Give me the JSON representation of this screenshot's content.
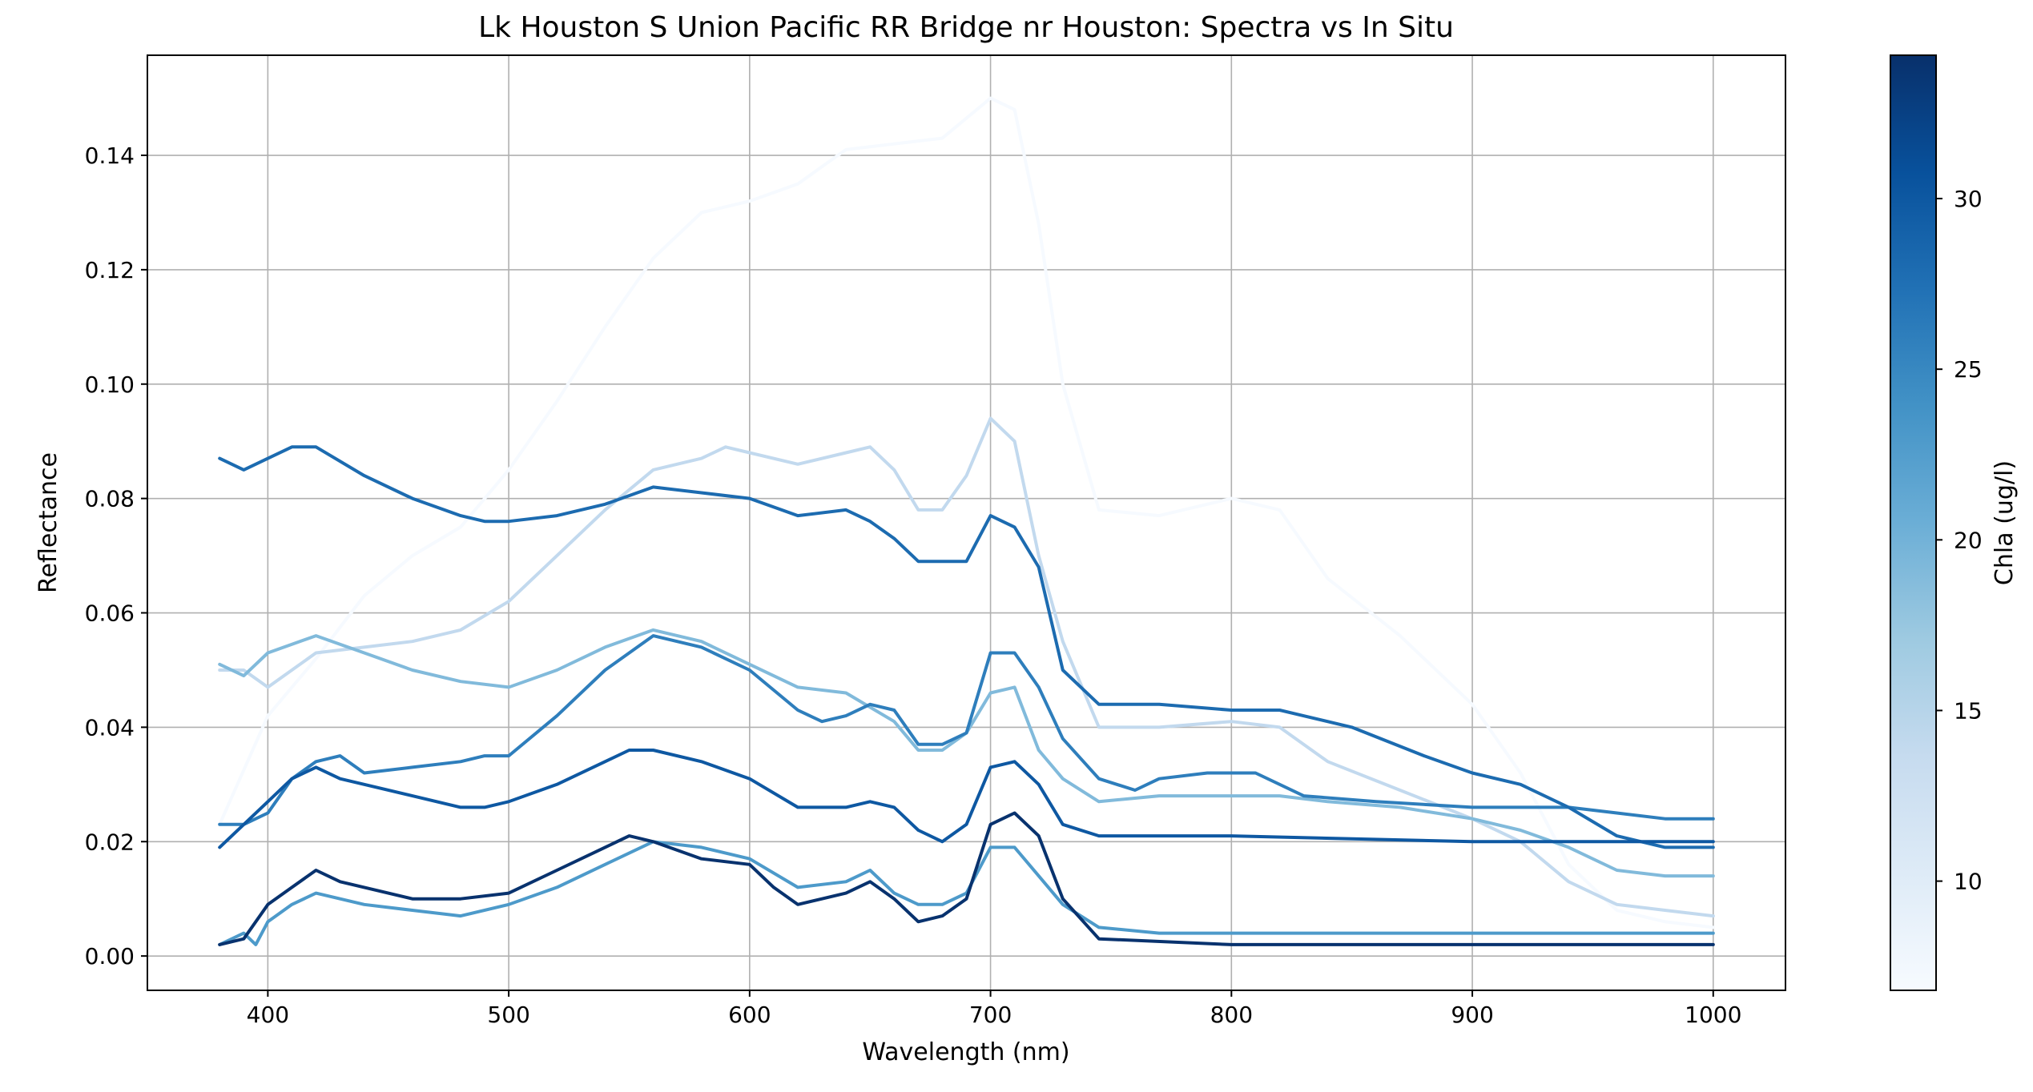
{
  "chart_data": {
    "type": "line",
    "title": "Lk Houston S Union Pacific RR Bridge nr Houston: Spectra vs In Situ",
    "xlabel": "Wavelength (nm)",
    "ylabel": "Reflectance",
    "xlim": [
      350,
      1030
    ],
    "ylim": [
      -0.006,
      0.1575
    ],
    "xticks": [
      400,
      500,
      600,
      700,
      800,
      900,
      1000
    ],
    "yticks": [
      0.0,
      0.02,
      0.04,
      0.06,
      0.08,
      0.1,
      0.12,
      0.14
    ],
    "ytick_labels": [
      "0.00",
      "0.02",
      "0.04",
      "0.06",
      "0.08",
      "0.10",
      "0.12",
      "0.14"
    ],
    "grid": true,
    "colorbar": {
      "label": "Chla (ug/l)",
      "range": [
        6.8,
        34.2
      ],
      "ticks": [
        10,
        15,
        20,
        25,
        30
      ],
      "colormap": "Blues",
      "colors": [
        "#f7fbff",
        "#deebf7",
        "#c6dbef",
        "#9ecae1",
        "#6baed6",
        "#4292c6",
        "#2171b5",
        "#08519c",
        "#08306b"
      ]
    },
    "series": [
      {
        "chla": 7.0,
        "x": [
          380,
          400,
          420,
          440,
          460,
          480,
          500,
          520,
          540,
          560,
          580,
          600,
          620,
          640,
          660,
          680,
          700,
          710,
          720,
          730,
          745,
          770,
          800,
          820,
          840,
          870,
          900,
          920,
          940,
          960,
          980,
          1000
        ],
        "y": [
          0.023,
          0.042,
          0.052,
          0.063,
          0.07,
          0.075,
          0.085,
          0.097,
          0.11,
          0.122,
          0.13,
          0.132,
          0.135,
          0.141,
          0.142,
          0.143,
          0.15,
          0.148,
          0.128,
          0.1,
          0.078,
          0.077,
          0.08,
          0.078,
          0.066,
          0.056,
          0.044,
          0.032,
          0.016,
          0.008,
          0.006,
          0.005
        ]
      },
      {
        "chla": 14.0,
        "x": [
          380,
          390,
          400,
          420,
          440,
          460,
          480,
          500,
          520,
          540,
          560,
          580,
          590,
          600,
          620,
          640,
          650,
          660,
          670,
          680,
          690,
          700,
          710,
          720,
          730,
          745,
          770,
          800,
          820,
          840,
          870,
          900,
          920,
          940,
          960,
          980,
          1000
        ],
        "y": [
          0.05,
          0.05,
          0.047,
          0.053,
          0.054,
          0.055,
          0.057,
          0.062,
          0.07,
          0.078,
          0.085,
          0.087,
          0.089,
          0.088,
          0.086,
          0.088,
          0.089,
          0.085,
          0.078,
          0.078,
          0.084,
          0.094,
          0.09,
          0.07,
          0.055,
          0.04,
          0.04,
          0.041,
          0.04,
          0.034,
          0.029,
          0.024,
          0.02,
          0.013,
          0.009,
          0.008,
          0.007
        ]
      },
      {
        "chla": 19.0,
        "x": [
          380,
          390,
          400,
          420,
          440,
          460,
          480,
          500,
          520,
          540,
          560,
          580,
          600,
          620,
          640,
          660,
          670,
          680,
          690,
          700,
          710,
          720,
          730,
          745,
          770,
          800,
          820,
          840,
          870,
          900,
          920,
          940,
          960,
          980,
          1000
        ],
        "y": [
          0.051,
          0.049,
          0.053,
          0.056,
          0.053,
          0.05,
          0.048,
          0.047,
          0.05,
          0.054,
          0.057,
          0.055,
          0.051,
          0.047,
          0.046,
          0.041,
          0.036,
          0.036,
          0.039,
          0.046,
          0.047,
          0.036,
          0.031,
          0.027,
          0.028,
          0.028,
          0.028,
          0.027,
          0.026,
          0.024,
          0.022,
          0.019,
          0.015,
          0.014,
          0.014
        ]
      },
      {
        "chla": 23.0,
        "x": [
          380,
          390,
          395,
          400,
          410,
          420,
          440,
          460,
          480,
          500,
          520,
          540,
          560,
          580,
          600,
          620,
          640,
          650,
          660,
          670,
          680,
          690,
          700,
          710,
          720,
          730,
          745,
          770,
          800,
          850,
          900,
          950,
          1000
        ],
        "y": [
          0.002,
          0.004,
          0.002,
          0.006,
          0.009,
          0.011,
          0.009,
          0.008,
          0.007,
          0.009,
          0.012,
          0.016,
          0.02,
          0.019,
          0.017,
          0.012,
          0.013,
          0.015,
          0.011,
          0.009,
          0.009,
          0.011,
          0.019,
          0.019,
          0.014,
          0.009,
          0.005,
          0.004,
          0.004,
          0.004,
          0.004,
          0.004,
          0.004
        ]
      },
      {
        "chla": 26.0,
        "x": [
          380,
          390,
          400,
          410,
          420,
          430,
          440,
          460,
          480,
          490,
          500,
          520,
          540,
          560,
          580,
          600,
          620,
          630,
          640,
          650,
          660,
          670,
          680,
          690,
          700,
          710,
          720,
          730,
          745,
          760,
          770,
          790,
          810,
          830,
          860,
          900,
          940,
          960,
          980,
          1000
        ],
        "y": [
          0.023,
          0.023,
          0.025,
          0.031,
          0.034,
          0.035,
          0.032,
          0.033,
          0.034,
          0.035,
          0.035,
          0.042,
          0.05,
          0.056,
          0.054,
          0.05,
          0.043,
          0.041,
          0.042,
          0.044,
          0.043,
          0.037,
          0.037,
          0.039,
          0.053,
          0.053,
          0.047,
          0.038,
          0.031,
          0.029,
          0.031,
          0.032,
          0.032,
          0.028,
          0.027,
          0.026,
          0.026,
          0.025,
          0.024,
          0.024
        ]
      },
      {
        "chla": 28.0,
        "x": [
          380,
          390,
          400,
          410,
          420,
          440,
          460,
          480,
          490,
          500,
          520,
          540,
          560,
          580,
          600,
          620,
          640,
          650,
          660,
          670,
          680,
          690,
          700,
          710,
          720,
          730,
          745,
          770,
          800,
          820,
          850,
          880,
          900,
          920,
          940,
          960,
          980,
          1000
        ],
        "y": [
          0.087,
          0.085,
          0.087,
          0.089,
          0.089,
          0.084,
          0.08,
          0.077,
          0.076,
          0.076,
          0.077,
          0.079,
          0.082,
          0.081,
          0.08,
          0.077,
          0.078,
          0.076,
          0.073,
          0.069,
          0.069,
          0.069,
          0.077,
          0.075,
          0.068,
          0.05,
          0.044,
          0.044,
          0.043,
          0.043,
          0.04,
          0.035,
          0.032,
          0.03,
          0.026,
          0.021,
          0.019,
          0.019
        ]
      },
      {
        "chla": 30.0,
        "x": [
          380,
          400,
          410,
          420,
          430,
          440,
          460,
          480,
          490,
          500,
          520,
          540,
          550,
          560,
          580,
          600,
          620,
          640,
          650,
          660,
          670,
          680,
          690,
          700,
          710,
          720,
          730,
          745,
          800,
          900,
          1000
        ],
        "y": [
          0.019,
          0.027,
          0.031,
          0.033,
          0.031,
          0.03,
          0.028,
          0.026,
          0.026,
          0.027,
          0.03,
          0.034,
          0.036,
          0.036,
          0.034,
          0.031,
          0.026,
          0.026,
          0.027,
          0.026,
          0.022,
          0.02,
          0.023,
          0.033,
          0.034,
          0.03,
          0.023,
          0.021,
          0.021,
          0.02,
          0.02
        ]
      },
      {
        "chla": 34.0,
        "x": [
          380,
          390,
          400,
          410,
          420,
          430,
          440,
          460,
          480,
          500,
          520,
          540,
          550,
          560,
          580,
          600,
          610,
          620,
          630,
          640,
          650,
          660,
          670,
          680,
          690,
          700,
          710,
          720,
          730,
          745,
          800,
          900,
          1000
        ],
        "y": [
          0.002,
          0.003,
          0.009,
          0.012,
          0.015,
          0.013,
          0.012,
          0.01,
          0.01,
          0.011,
          0.015,
          0.019,
          0.021,
          0.02,
          0.017,
          0.016,
          0.012,
          0.009,
          0.01,
          0.011,
          0.013,
          0.01,
          0.006,
          0.007,
          0.01,
          0.023,
          0.025,
          0.021,
          0.01,
          0.003,
          0.002,
          0.002,
          0.002
        ]
      }
    ]
  }
}
